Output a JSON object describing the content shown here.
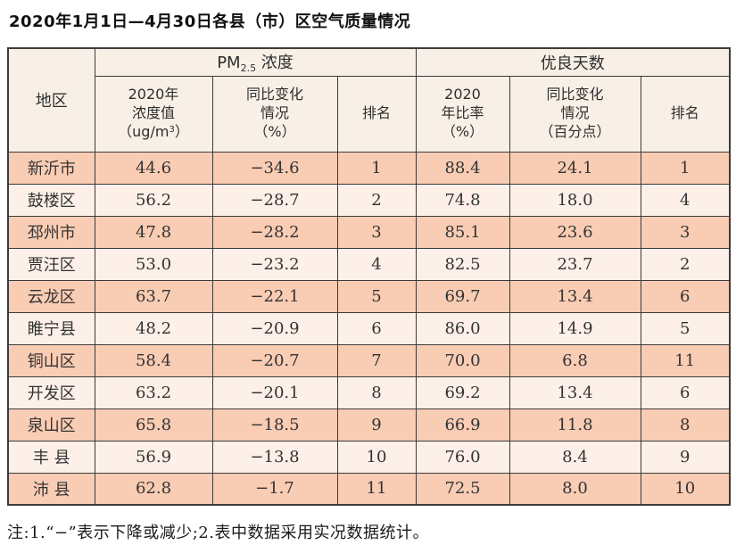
{
  "page": {
    "title": "2020年1月1日—4月30日各县（市）区空气质量情况",
    "note": "注:1.“−”表示下降或减少;2.表中数据采用实况数据统计。"
  },
  "colors": {
    "row_odd_bg": "#f9ccb4",
    "row_even_bg": "#fdf0e9",
    "header_bg": "#f8f0e6",
    "border": "#3b3b3b"
  },
  "table": {
    "header": {
      "region": "地区",
      "pm25_group": {
        "prefix": "PM",
        "sub": "2.5",
        "suffix": " 浓度"
      },
      "good_days_group": "优良天数",
      "col_pm_value": {
        "line1": "2020年",
        "line2": "浓度值",
        "unit_prefix": "（ug/m",
        "unit_sup": "3",
        "unit_suffix": "）"
      },
      "col_pm_change": {
        "line1": "同比变化",
        "line2": "情况",
        "line3": "（%）"
      },
      "col_pm_rank": "排名",
      "col_ratio": {
        "line1": "2020",
        "line2": "年比率",
        "line3": "（%）"
      },
      "col_ratio_change": {
        "line1": "同比变化",
        "line2": "情况",
        "line3": "（百分点）"
      },
      "col_ratio_rank": "排名"
    },
    "rows": [
      {
        "region": "新沂市",
        "pm25": "44.6",
        "pm25_change": "−34.6",
        "pm25_rank": "1",
        "ratio": "88.4",
        "ratio_change": "24.1",
        "ratio_rank": "1"
      },
      {
        "region": "鼓楼区",
        "pm25": "56.2",
        "pm25_change": "−28.7",
        "pm25_rank": "2",
        "ratio": "74.8",
        "ratio_change": "18.0",
        "ratio_rank": "4"
      },
      {
        "region": "邳州市",
        "pm25": "47.8",
        "pm25_change": "−28.2",
        "pm25_rank": "3",
        "ratio": "85.1",
        "ratio_change": "23.6",
        "ratio_rank": "3"
      },
      {
        "region": "贾汪区",
        "pm25": "53.0",
        "pm25_change": "−23.2",
        "pm25_rank": "4",
        "ratio": "82.5",
        "ratio_change": "23.7",
        "ratio_rank": "2"
      },
      {
        "region": "云龙区",
        "pm25": "63.7",
        "pm25_change": "−22.1",
        "pm25_rank": "5",
        "ratio": "69.7",
        "ratio_change": "13.4",
        "ratio_rank": "6"
      },
      {
        "region": "睢宁县",
        "pm25": "48.2",
        "pm25_change": "−20.9",
        "pm25_rank": "6",
        "ratio": "86.0",
        "ratio_change": "14.9",
        "ratio_rank": "5"
      },
      {
        "region": "铜山区",
        "pm25": "58.4",
        "pm25_change": "−20.7",
        "pm25_rank": "7",
        "ratio": "70.0",
        "ratio_change": "6.8",
        "ratio_rank": "11"
      },
      {
        "region": "开发区",
        "pm25": "63.2",
        "pm25_change": "−20.1",
        "pm25_rank": "8",
        "ratio": "69.2",
        "ratio_change": "13.4",
        "ratio_rank": "6"
      },
      {
        "region": "泉山区",
        "pm25": "65.8",
        "pm25_change": "−18.5",
        "pm25_rank": "9",
        "ratio": "66.9",
        "ratio_change": "11.8",
        "ratio_rank": "8"
      },
      {
        "region": "丰 县",
        "pm25": "56.9",
        "pm25_change": "−13.8",
        "pm25_rank": "10",
        "ratio": "76.0",
        "ratio_change": "8.4",
        "ratio_rank": "9"
      },
      {
        "region": "沛 县",
        "pm25": "62.8",
        "pm25_change": "−1.7",
        "pm25_rank": "11",
        "ratio": "72.5",
        "ratio_change": "8.0",
        "ratio_rank": "10"
      }
    ]
  }
}
